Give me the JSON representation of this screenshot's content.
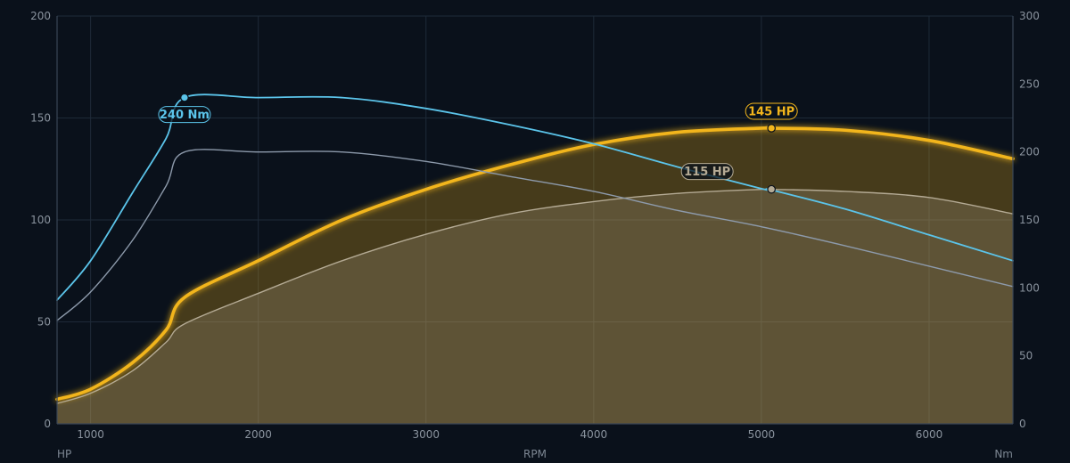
{
  "chart_data": {
    "type": "line",
    "xlabel": "RPM",
    "ylabel_left": "HP",
    "ylabel_right": "Nm",
    "xlim": [
      800,
      6500
    ],
    "ylim_left": [
      0,
      200
    ],
    "ylim_right": [
      0,
      300
    ],
    "x_ticks": [
      1000,
      2000,
      3000,
      4000,
      5000,
      6000
    ],
    "y_ticks_left": [
      0,
      50,
      100,
      150,
      200
    ],
    "y_ticks_right": [
      0,
      50,
      100,
      150,
      200,
      250,
      300
    ],
    "grid": true,
    "series": [
      {
        "axis": "left",
        "color": "#f2b51c",
        "style": "glow-filled",
        "points": [
          [
            800,
            12
          ],
          [
            1000,
            17
          ],
          [
            1250,
            30
          ],
          [
            1450,
            46
          ],
          [
            1560,
            62
          ],
          [
            2000,
            80
          ],
          [
            2500,
            100
          ],
          [
            3000,
            115
          ],
          [
            3500,
            127
          ],
          [
            4000,
            137
          ],
          [
            4500,
            143
          ],
          [
            5000,
            145
          ],
          [
            5060,
            145
          ],
          [
            5500,
            144
          ],
          [
            6000,
            139
          ],
          [
            6500,
            130
          ]
        ]
      },
      {
        "axis": "left",
        "color": "#b4aa94",
        "style": "filled",
        "points": [
          [
            800,
            10
          ],
          [
            1000,
            15
          ],
          [
            1250,
            26
          ],
          [
            1450,
            40
          ],
          [
            1560,
            49
          ],
          [
            2000,
            64
          ],
          [
            2500,
            80
          ],
          [
            3000,
            93
          ],
          [
            3500,
            103
          ],
          [
            4000,
            109
          ],
          [
            4500,
            113
          ],
          [
            5000,
            115
          ],
          [
            5060,
            115
          ],
          [
            5500,
            114
          ],
          [
            6000,
            111
          ],
          [
            6500,
            103
          ]
        ]
      },
      {
        "axis": "right",
        "color": "#5bc4ea",
        "style": "line",
        "points": [
          [
            800,
            91
          ],
          [
            1000,
            120
          ],
          [
            1250,
            170
          ],
          [
            1450,
            210
          ],
          [
            1560,
            240
          ],
          [
            2000,
            240
          ],
          [
            2500,
            240
          ],
          [
            3000,
            232
          ],
          [
            3500,
            220
          ],
          [
            4000,
            206
          ],
          [
            4500,
            189
          ],
          [
            5000,
            173
          ],
          [
            5060,
            172
          ],
          [
            5500,
            158
          ],
          [
            6000,
            139
          ],
          [
            6500,
            120
          ]
        ]
      },
      {
        "axis": "right",
        "color": "#8d9aab",
        "style": "line",
        "points": [
          [
            800,
            76
          ],
          [
            1000,
            97
          ],
          [
            1250,
            135
          ],
          [
            1450,
            175
          ],
          [
            1560,
            200
          ],
          [
            2000,
            200
          ],
          [
            2500,
            200
          ],
          [
            3000,
            193
          ],
          [
            3500,
            182
          ],
          [
            4000,
            171
          ],
          [
            4500,
            157
          ],
          [
            5000,
            145
          ],
          [
            5500,
            131
          ],
          [
            6000,
            116
          ],
          [
            6500,
            101
          ]
        ]
      }
    ],
    "annotations": [
      {
        "text": "145 HP",
        "x": 5060,
        "y": 145,
        "axis": "left",
        "color": "#f2b51c",
        "label_pos": "above"
      },
      {
        "text": "115 HP",
        "x": 5060,
        "y": 115,
        "axis": "left",
        "color": "#b4aa94",
        "label_pos": "above-left"
      },
      {
        "text": "240 Nm",
        "x": 1560,
        "y": 240,
        "axis": "right",
        "color": "#5bc4ea",
        "label_pos": "below"
      }
    ]
  }
}
